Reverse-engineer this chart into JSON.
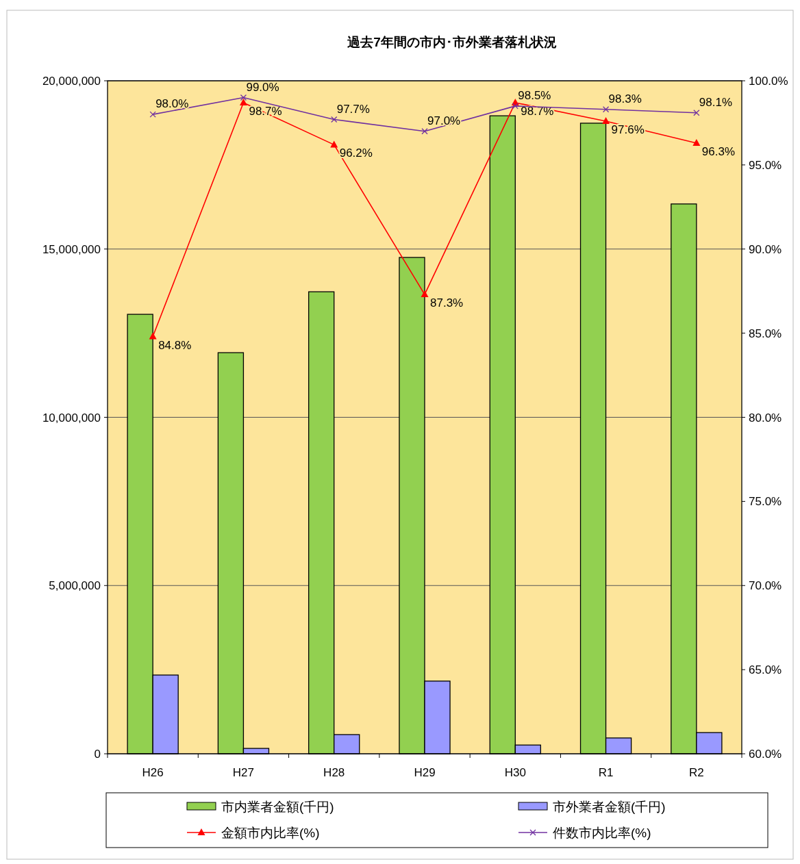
{
  "chart_data": {
    "type": "bar",
    "title": "過去7年間の市内･市外業者落札状況",
    "categories": [
      "H26",
      "H27",
      "H28",
      "H29",
      "H30",
      "R1",
      "R2"
    ],
    "series": [
      {
        "name": "市内業者金額(千円)",
        "color": "#92d050",
        "values": [
          13060000,
          11920000,
          13730000,
          14750000,
          18960000,
          18740000,
          16340000
        ]
      },
      {
        "name": "市外業者金額(千円)",
        "color": "#9999ff",
        "values": [
          2340000,
          160000,
          570000,
          2160000,
          260000,
          470000,
          630000
        ]
      },
      {
        "name": "金額市内比率(%)",
        "type": "line",
        "axis": "y2",
        "color": "#ff0000",
        "marker": "triangle",
        "values": [
          84.8,
          98.7,
          96.2,
          87.3,
          98.7,
          97.6,
          96.3
        ],
        "value_labels": [
          "84.8%",
          "98.7%",
          "96.2%",
          "87.3%",
          "98.7%",
          "97.6%",
          "96.3%"
        ]
      },
      {
        "name": "件数市内比率(%)",
        "type": "line",
        "axis": "y2",
        "color": "#7030a0",
        "marker": "cross",
        "values": [
          98.0,
          99.0,
          97.7,
          97.0,
          98.5,
          98.3,
          98.1
        ],
        "value_labels": [
          "98.0%",
          "99.0%",
          "97.7%",
          "97.0%",
          "98.5%",
          "98.3%",
          "98.1%"
        ]
      }
    ],
    "ylim": [
      0,
      20000000
    ],
    "yticks": [
      0,
      {
        "value": 5000000,
        "label": "5,000,000"
      },
      {
        "value": 10000000,
        "label": "10,000,000"
      },
      {
        "value": 15000000,
        "label": "15,000,000"
      },
      {
        "value": 20000000,
        "label": "20,000,000"
      }
    ],
    "y2lim": [
      60,
      100
    ],
    "y2ticks": [
      {
        "value": 60,
        "label": "60.0%"
      },
      {
        "value": 65,
        "label": "65.0%"
      },
      {
        "value": 70,
        "label": "70.0%"
      },
      {
        "value": 75,
        "label": "75.0%"
      },
      {
        "value": 80,
        "label": "80.0%"
      },
      {
        "value": 85,
        "label": "85.0%"
      },
      {
        "value": 90,
        "label": "90.0%"
      },
      {
        "value": 95,
        "label": "95.0%"
      },
      {
        "value": 100,
        "label": "100.0%"
      }
    ],
    "grid": "y",
    "legend": "bottom"
  }
}
